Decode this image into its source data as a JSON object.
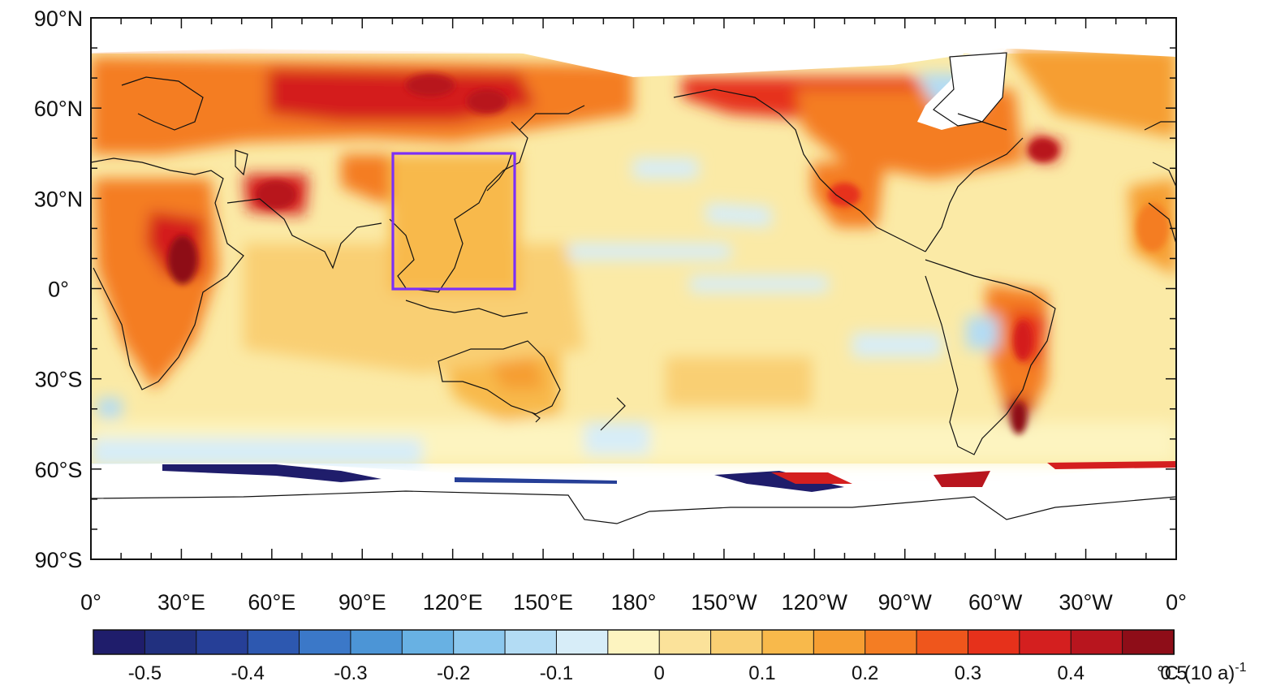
{
  "map": {
    "type": "global-temperature-trend-map",
    "projection": "equirectangular",
    "lon_range": [
      0,
      360
    ],
    "lat_range": [
      -90,
      90
    ],
    "lat_ticks": [
      {
        "value": 90,
        "label": "90°N"
      },
      {
        "value": 60,
        "label": "60°N"
      },
      {
        "value": 30,
        "label": "30°N"
      },
      {
        "value": 0,
        "label": "0°"
      },
      {
        "value": -30,
        "label": "30°S"
      },
      {
        "value": -60,
        "label": "60°S"
      },
      {
        "value": -90,
        "label": "90°S"
      }
    ],
    "lon_ticks": [
      {
        "value": 0,
        "label": "0°"
      },
      {
        "value": 30,
        "label": "30°E"
      },
      {
        "value": 60,
        "label": "60°E"
      },
      {
        "value": 90,
        "label": "90°E"
      },
      {
        "value": 120,
        "label": "120°E"
      },
      {
        "value": 150,
        "label": "150°E"
      },
      {
        "value": 180,
        "label": "180°"
      },
      {
        "value": 210,
        "label": "150°W"
      },
      {
        "value": 240,
        "label": "120°W"
      },
      {
        "value": 270,
        "label": "90°W"
      },
      {
        "value": 300,
        "label": "60°W"
      },
      {
        "value": 330,
        "label": "30°W"
      },
      {
        "value": 360,
        "label": "0°"
      }
    ],
    "highlight_box": {
      "lon": [
        100,
        140
      ],
      "lat": [
        0,
        45
      ],
      "color": "#7b2ff7"
    },
    "fill_colors": {
      "ocean_base": "#fbeaa6",
      "land_warm": "#f6a23a",
      "no_data": "#ffffff"
    }
  },
  "colorbar": {
    "levels": [
      -0.5,
      -0.4,
      -0.3,
      -0.2,
      -0.1,
      0,
      0.1,
      0.2,
      0.3,
      0.4,
      0.5
    ],
    "tick_labels": [
      "-0.5",
      "-0.4",
      "-0.3",
      "-0.2",
      "-0.1",
      "0",
      "0.1",
      "0.2",
      "0.3",
      "0.4",
      "0.5"
    ],
    "unit": "°C (10 a)",
    "unit_superscript": "-1",
    "colors": [
      "#1f1d6b",
      "#21307f",
      "#263f97",
      "#2d58b0",
      "#3b78c8",
      "#4c95d6",
      "#68b1e3",
      "#8cc8ee",
      "#b3dcf4",
      "#d7edf8",
      "#fdf4c0",
      "#fbe29a",
      "#f9cf73",
      "#f8b94b",
      "#f69e32",
      "#f47d23",
      "#ef561c",
      "#e6311b",
      "#d41f1f",
      "#b8151e",
      "#8e0d18"
    ]
  }
}
